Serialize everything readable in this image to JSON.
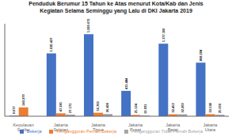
{
  "chart_data": {
    "type": "bar",
    "title": "Penduduk Berumur 15 Tahun ke Atas menurut Kota/Kab dan Jenis\nKegiatan Selama Seminggu yang Lalu di DKI Jakarta 2019",
    "categories": [
      "Kepulauan\nSeribu",
      "Jakarta\nSelatan",
      "Jakarta\nTimur",
      "Jakarta\nPusat",
      "Jakarta\nBarat",
      "Jakarta\nUtara"
    ],
    "series": [
      {
        "name": "Bekerja",
        "color": "#4472C4",
        "values": [
          9077,
          1020437,
          1330671,
          411484,
          1177100,
          868208
        ],
        "value_labels": [
          "9.077",
          "1.020.437",
          "1.330.671",
          "411.484",
          "1.177.100",
          "868.208"
        ]
      },
      {
        "name": "Pengangguran Pernah Bekerja",
        "color": "#ED7D31",
        "values": [
          143379,
          47181,
          56760,
          21124,
          32452,
          33538
        ],
        "value_labels": [
          "143.379",
          "47.181",
          "56.760",
          "21.124",
          "32.452",
          "33.538"
        ]
      },
      {
        "name": "Pengangguran Tidak Pernah Bekerja",
        "color": "#A5A5A5",
        "values": [
          0,
          27171,
          36400,
          13931,
          32260,
          25016
        ],
        "value_labels": [
          null,
          "27.171",
          "36.400",
          "13.931",
          "32.260",
          "25.016"
        ]
      }
    ],
    "ylim": [
      0,
      1500000
    ],
    "tick_labels": "x",
    "data_labels": true,
    "legend": "bottom",
    "grid": false
  }
}
